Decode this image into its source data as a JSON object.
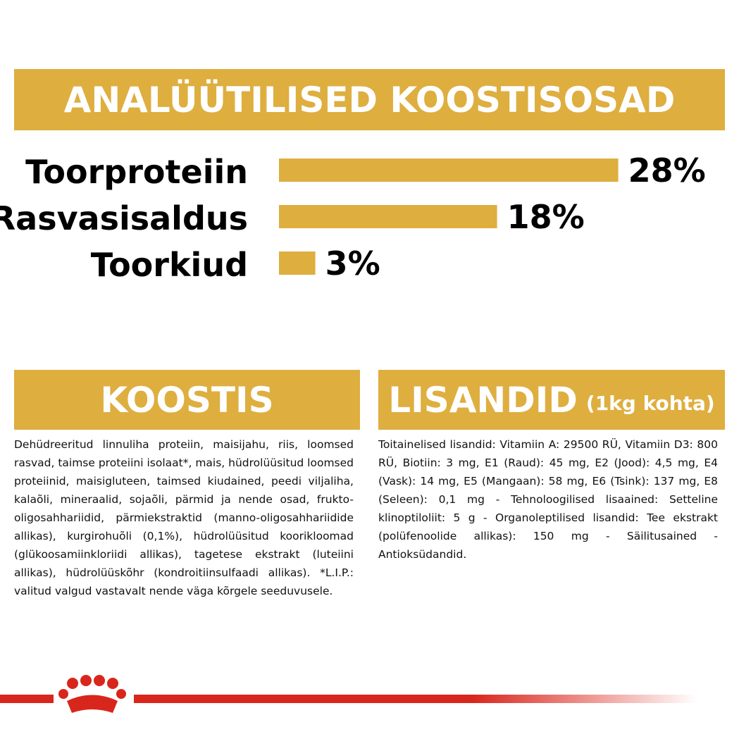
{
  "header": {
    "title": "ANALÜÜTILISED KOOSTISOSAD"
  },
  "chart_data": {
    "type": "bar",
    "orientation": "horizontal",
    "categories": [
      "Toorproteiin",
      "Rasvasisaldus",
      "Toorkiud"
    ],
    "values": [
      28,
      18,
      3
    ],
    "value_labels": [
      "28%",
      "18%",
      "3%"
    ],
    "color": "#deae3f"
  },
  "composition": {
    "title": "KOOSTIS",
    "text": "Dehüdreeritud linnuliha proteiin, maisijahu, riis, loomsed rasvad, taimse proteiini isolaat*, mais, hüdrolüüsitud loomsed proteiinid, maisigluteen, taimsed kiudained, peedi viljaliha, kalaõli, mineraalid, sojaõli, pärmid ja nende osad, frukto-oligosahhariidid, pärmiekstraktid (manno-oligosahhariidide allikas), kurgirohuõli (0,1%), hüdrolüüsitud koorikloomad (glükoosamiinkloriidi allikas), tagetese ekstrakt (luteiini allikas), hüdrolüüskõhr (kondroitiinsulfaadi allikas). *L.I.P.: valitud valgud vastavalt nende väga kõrgele seeduvusele."
  },
  "additives": {
    "title": "LISANDID",
    "subtitle": "(1kg kohta)",
    "text": "Toitainelised lisandid: Vitamiin A: 29500 RÜ, Vitamiin D3: 800 RÜ, Biotiin: 3 mg, E1 (Raud): 45 mg, E2 (Jood): 4,5 mg, E4 (Vask): 14 mg, E5 (Mangaan): 58 mg, E6 (Tsink): 137 mg, E8 (Seleen): 0,1 mg - Tehnoloogilised lisaained: Setteline klinoptiloliit: 5 g - Organoleptilised lisandid: Tee ekstrakt (polüfenoolide allikas): 150 mg - Säilitusained - Antioksüdandid."
  }
}
